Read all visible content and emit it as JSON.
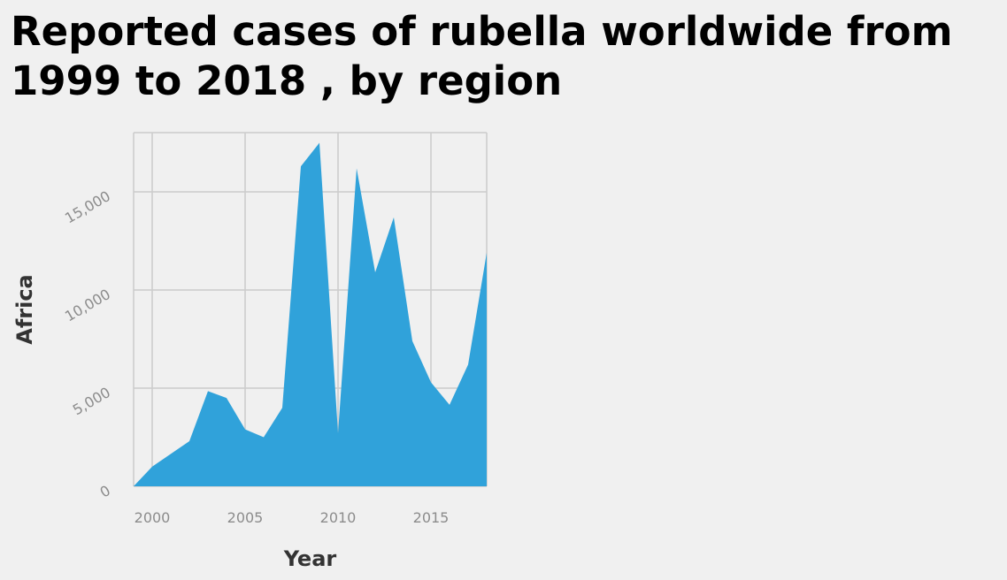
{
  "chart_data": {
    "type": "area",
    "title": "Reported cases of rubella worldwide from 1999 to 2018 , by region",
    "xlabel": "Year",
    "ylabel": "Africa",
    "x": [
      1999,
      2000,
      2001,
      2002,
      2003,
      2004,
      2005,
      2006,
      2007,
      2008,
      2009,
      2010,
      2011,
      2012,
      2013,
      2014,
      2015,
      2016,
      2017,
      2018
    ],
    "series": [
      {
        "values": [
          0,
          1000,
          1650,
          2300,
          4850,
          4500,
          2900,
          2500,
          4000,
          16300,
          17500,
          2700,
          16200,
          10900,
          13700,
          7400,
          5300,
          4150,
          6200,
          11900
        ]
      }
    ],
    "xlim": [
      1999,
      2018
    ],
    "ylim": [
      0,
      18000
    ],
    "x_ticks": [
      2000,
      2005,
      2010,
      2015
    ],
    "x_tick_labels": [
      "2000",
      "2005",
      "2010",
      "2015"
    ],
    "y_ticks": [
      0,
      5000,
      10000,
      15000
    ],
    "y_tick_labels": [
      "0",
      "5,000",
      "10,000",
      "15,000"
    ],
    "grid": true,
    "fill_color": "#30a2da",
    "grid_color": "#cbcbcb",
    "background_color": "#f0f0f0"
  }
}
